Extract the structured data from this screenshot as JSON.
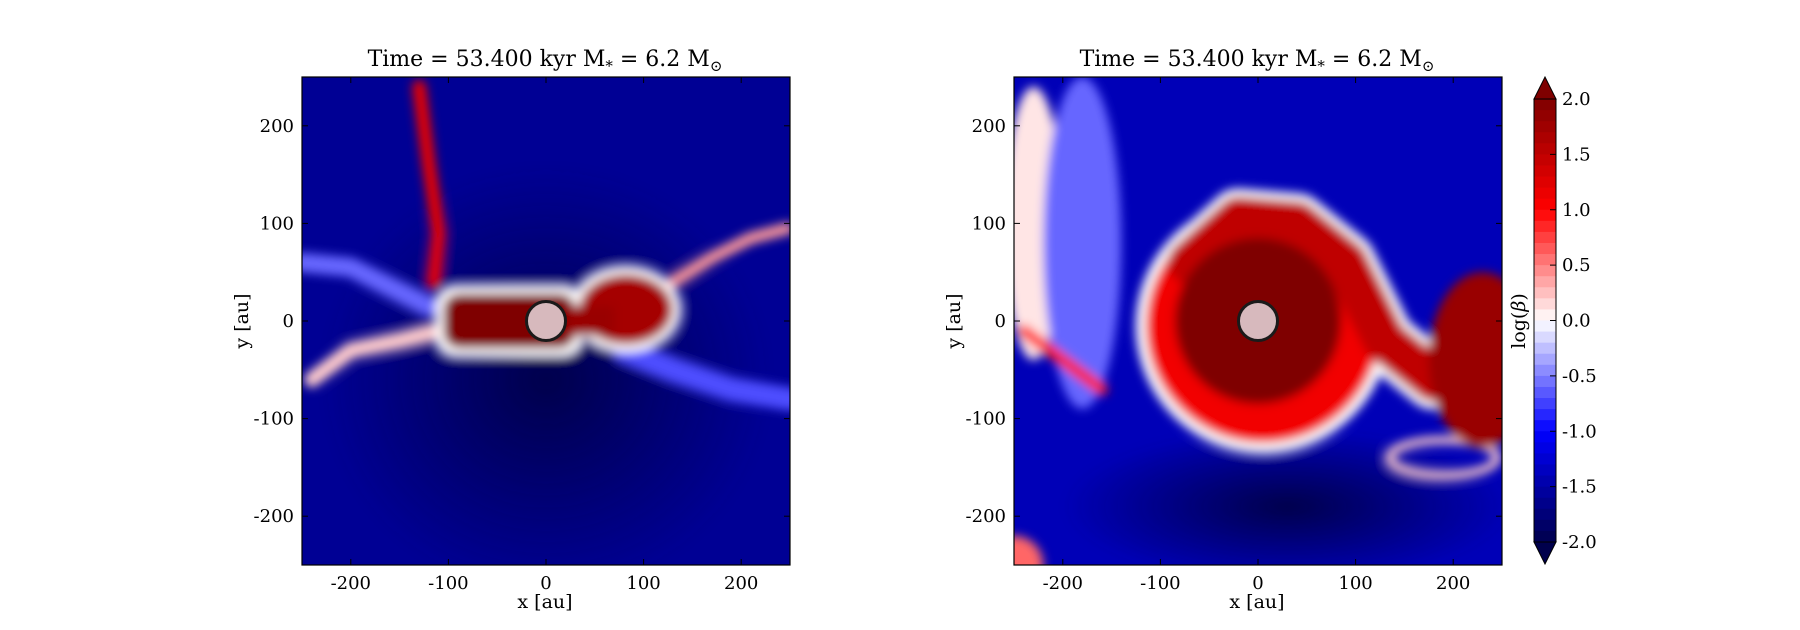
{
  "chart_data": [
    {
      "type": "heatmap",
      "title": "Time = 53.400 kyr    M$_*$ = 6.2 M$_\\odot$",
      "title_parts": {
        "time": "Time = 53.400 kyr",
        "mass_label": "M",
        "mass_sub": "*",
        "mass_value": " = 6.2 M",
        "mass_unit_sub": "⊙"
      },
      "xlabel": "x [au]",
      "ylabel": "y [au]",
      "xlim": [
        -250,
        250
      ],
      "ylim": [
        -250,
        250
      ],
      "xticks": [
        -200,
        -100,
        0,
        100,
        200
      ],
      "yticks": [
        -200,
        -100,
        0,
        100,
        200
      ],
      "xtick_labels": [
        "-200",
        "-100",
        "0",
        "100",
        "200"
      ],
      "ytick_labels": [
        "-200",
        "-100",
        "0",
        "100",
        "200"
      ],
      "sink": {
        "x": 0,
        "y": 0,
        "radius": 20
      },
      "features": {
        "background_level": -1.6,
        "disk_core": {
          "x0": -105,
          "x1": 30,
          "y": 0,
          "half_height": 28,
          "level": 2.0
        },
        "disk_lobe": {
          "x": 82,
          "y": 12,
          "rx": 48,
          "ry": 36,
          "level": 1.7
        },
        "filaments": [
          {
            "points": [
              [
                -130,
                240
              ],
              [
                -120,
                160
              ],
              [
                -110,
                90
              ],
              [
                -115,
                40
              ]
            ],
            "width": 14,
            "level": 1.2
          },
          {
            "points": [
              [
                -240,
                -60
              ],
              [
                -200,
                -30
              ],
              [
                -150,
                -20
              ],
              [
                -110,
                -10
              ]
            ],
            "width": 16,
            "level": 0.2
          },
          {
            "points": [
              [
                130,
                40
              ],
              [
                170,
                65
              ],
              [
                210,
                85
              ],
              [
                248,
                95
              ]
            ],
            "width": 12,
            "level": 0.4
          },
          {
            "points": [
              [
                -250,
                60
              ],
              [
                -200,
                55
              ],
              [
                -150,
                30
              ],
              [
                -120,
                15
              ]
            ],
            "width": 20,
            "level": -0.6
          },
          {
            "points": [
              [
                80,
                -30
              ],
              [
                130,
                -50
              ],
              [
                190,
                -70
              ],
              [
                250,
                -80
              ]
            ],
            "width": 24,
            "level": -0.7
          }
        ]
      }
    },
    {
      "type": "heatmap",
      "title": "Time = 53.400 kyr    M$_*$ = 6.2 M$_\\odot$",
      "title_parts": {
        "time": "Time = 53.400 kyr",
        "mass_label": "M",
        "mass_sub": "*",
        "mass_value": " = 6.2 M",
        "mass_unit_sub": "⊙"
      },
      "xlabel": "x [au]",
      "ylabel": "y [au]",
      "xlim": [
        -250,
        250
      ],
      "ylim": [
        -250,
        250
      ],
      "xticks": [
        -200,
        -100,
        0,
        100,
        200
      ],
      "yticks": [
        -200,
        -100,
        0,
        100,
        200
      ],
      "xtick_labels": [
        "-200",
        "-100",
        "0",
        "100",
        "200"
      ],
      "ytick_labels": [
        "-200",
        "-100",
        "0",
        "100",
        "200"
      ],
      "sink": {
        "x": 0,
        "y": 0,
        "radius": 20
      },
      "features": {
        "background_level": -1.4,
        "disk_core": {
          "x": 0,
          "y": 0,
          "r": 85,
          "level": 2.0
        },
        "disk_halo": {
          "x": 5,
          "y": -5,
          "r": 120,
          "level": 1.1
        },
        "spiral_arm": {
          "points": [
            [
              -70,
              60
            ],
            [
              -20,
              105
            ],
            [
              40,
              100
            ],
            [
              90,
              60
            ],
            [
              130,
              -20
            ],
            [
              180,
              -60
            ],
            [
              230,
              -50
            ]
          ],
          "width": 45,
          "level": 1.5
        },
        "outer_lobe": {
          "x": 230,
          "y": -40,
          "rx": 55,
          "ry": 90,
          "level": 1.8
        },
        "loop": {
          "x": 190,
          "y": -140,
          "rx": 55,
          "ry": 18,
          "level": 0.2
        },
        "left_band": {
          "x": -230,
          "y": 100,
          "rx": 30,
          "ry": 140,
          "level": 0.1
        },
        "lower_left_streak": {
          "points": [
            [
              -240,
              -10
            ],
            [
              -200,
              -40
            ],
            [
              -160,
              -70
            ]
          ],
          "width": 12,
          "level": 0.9
        },
        "corner": {
          "x": -250,
          "y": -250,
          "r": 30,
          "level": 0.6
        }
      }
    }
  ],
  "colorbar": {
    "label": "log(β)",
    "range": [
      -2.0,
      2.0
    ],
    "ticks": [
      2.0,
      1.5,
      1.0,
      0.5,
      0.0,
      -0.5,
      -1.0,
      -1.5,
      -2.0
    ],
    "tick_labels": [
      "2.0",
      "1.5",
      "1.0",
      "0.5",
      "0.0",
      "-0.5",
      "-1.0",
      "-1.5",
      "-2.0"
    ],
    "extend": "both",
    "colormap": "seismic",
    "colors": {
      "min": "#00004c",
      "low": "#0000ff",
      "mid": "#ffffff",
      "high": "#ff0000",
      "max": "#7f0000"
    }
  },
  "colors": {
    "sink_fill": "#d7b9bd",
    "sink_stroke": "#1a1a1a"
  }
}
